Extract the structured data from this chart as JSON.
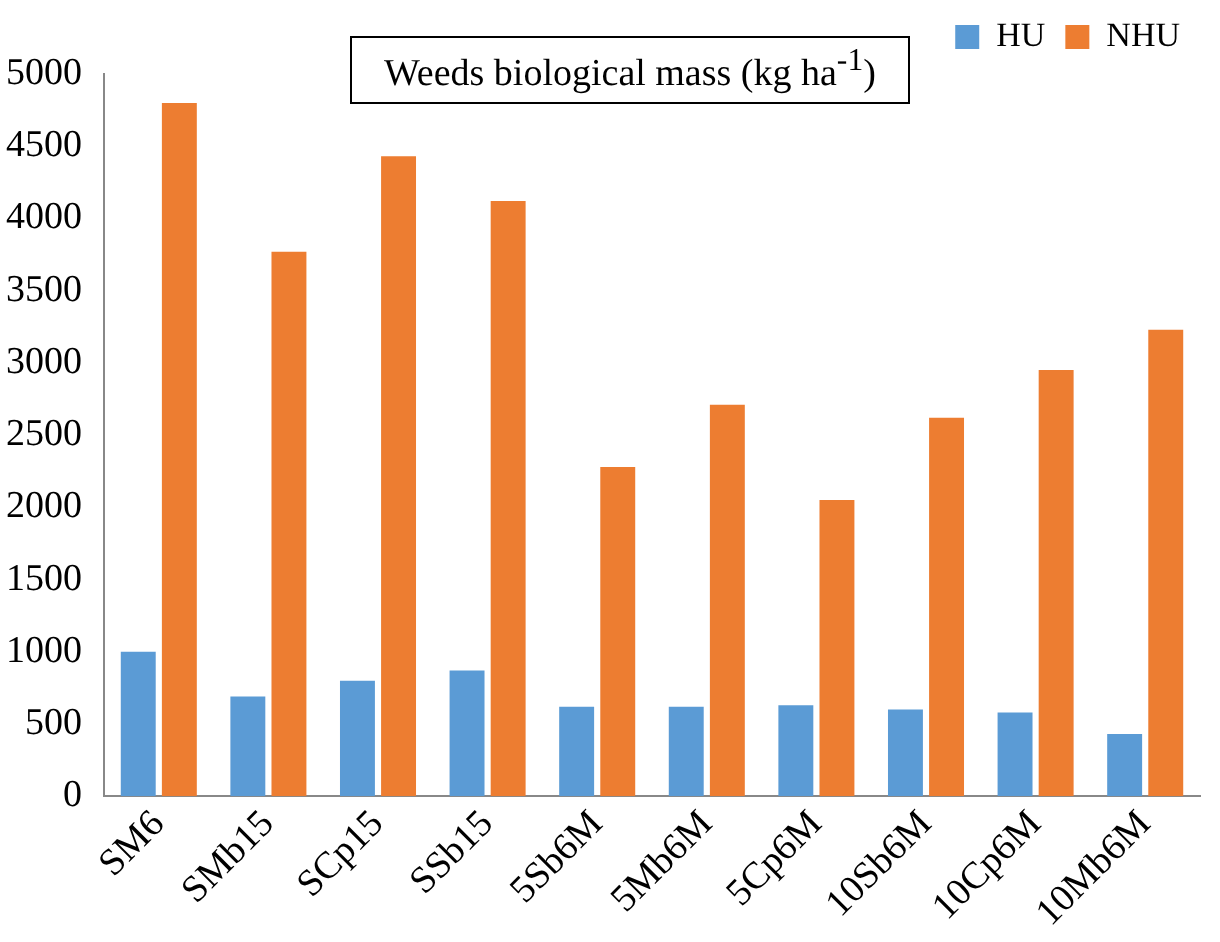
{
  "chart_data": {
    "type": "bar",
    "title": "Weeds biological mass (kg ha$^{-1}$)",
    "categories": [
      "SM6",
      "SMb15",
      "SCp15",
      "SSb15",
      "5Sb6M",
      "5Mb6M",
      "5Cp6M",
      "10Sb6M",
      "10Cp6M",
      "10Mb6M"
    ],
    "series": [
      {
        "name": "HU",
        "color": "#5b9bd5",
        "values": [
          1000,
          690,
          800,
          870,
          620,
          620,
          630,
          600,
          580,
          430
        ]
      },
      {
        "name": "NHU",
        "color": "#ed7d31",
        "values": [
          4800,
          3770,
          4430,
          4120,
          2280,
          2710,
          2050,
          2620,
          2950,
          3230
        ]
      }
    ],
    "ylim": [
      0,
      5000
    ],
    "yticks": [
      0,
      500,
      1000,
      1500,
      2000,
      2500,
      3000,
      3500,
      4000,
      4500,
      5000
    ],
    "grid": false,
    "legend": "top right"
  }
}
